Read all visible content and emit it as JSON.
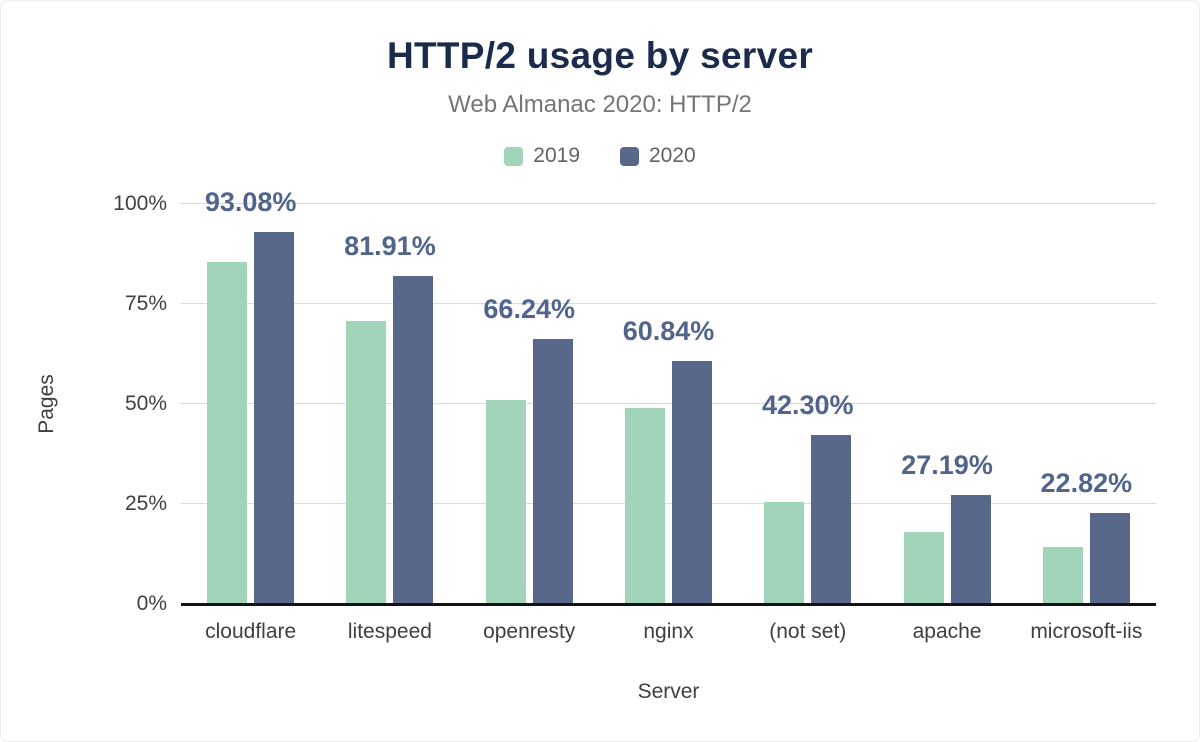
{
  "chart_data": {
    "type": "bar",
    "title": "HTTP/2 usage by server",
    "subtitle": "Web Almanac 2020: HTTP/2",
    "xlabel": "Server",
    "ylabel": "Pages",
    "categories": [
      "cloudflare",
      "litespeed",
      "openresty",
      "nginx",
      "(not set)",
      "apache",
      "microsoft-iis"
    ],
    "series": [
      {
        "name": "2019",
        "color": "#a2d4ba",
        "values": [
          85.5,
          70.8,
          51.0,
          49.0,
          25.5,
          18.0,
          14.2
        ]
      },
      {
        "name": "2020",
        "color": "#57688b",
        "values": [
          93.08,
          81.91,
          66.24,
          60.84,
          42.3,
          27.19,
          22.82
        ]
      }
    ],
    "value_labels": [
      "93.08%",
      "81.91%",
      "66.24%",
      "60.84%",
      "42.30%",
      "27.19%",
      "22.82%"
    ],
    "y_ticks": [
      "0%",
      "25%",
      "50%",
      "75%",
      "100%"
    ],
    "ylim": [
      0,
      100
    ],
    "grid": true,
    "legend_position": "top",
    "colors": {
      "title": "#1b2b4b",
      "subtitle": "#757575",
      "value_label": "#51658c",
      "gridline": "#dadada",
      "baseline": "#141414"
    }
  }
}
